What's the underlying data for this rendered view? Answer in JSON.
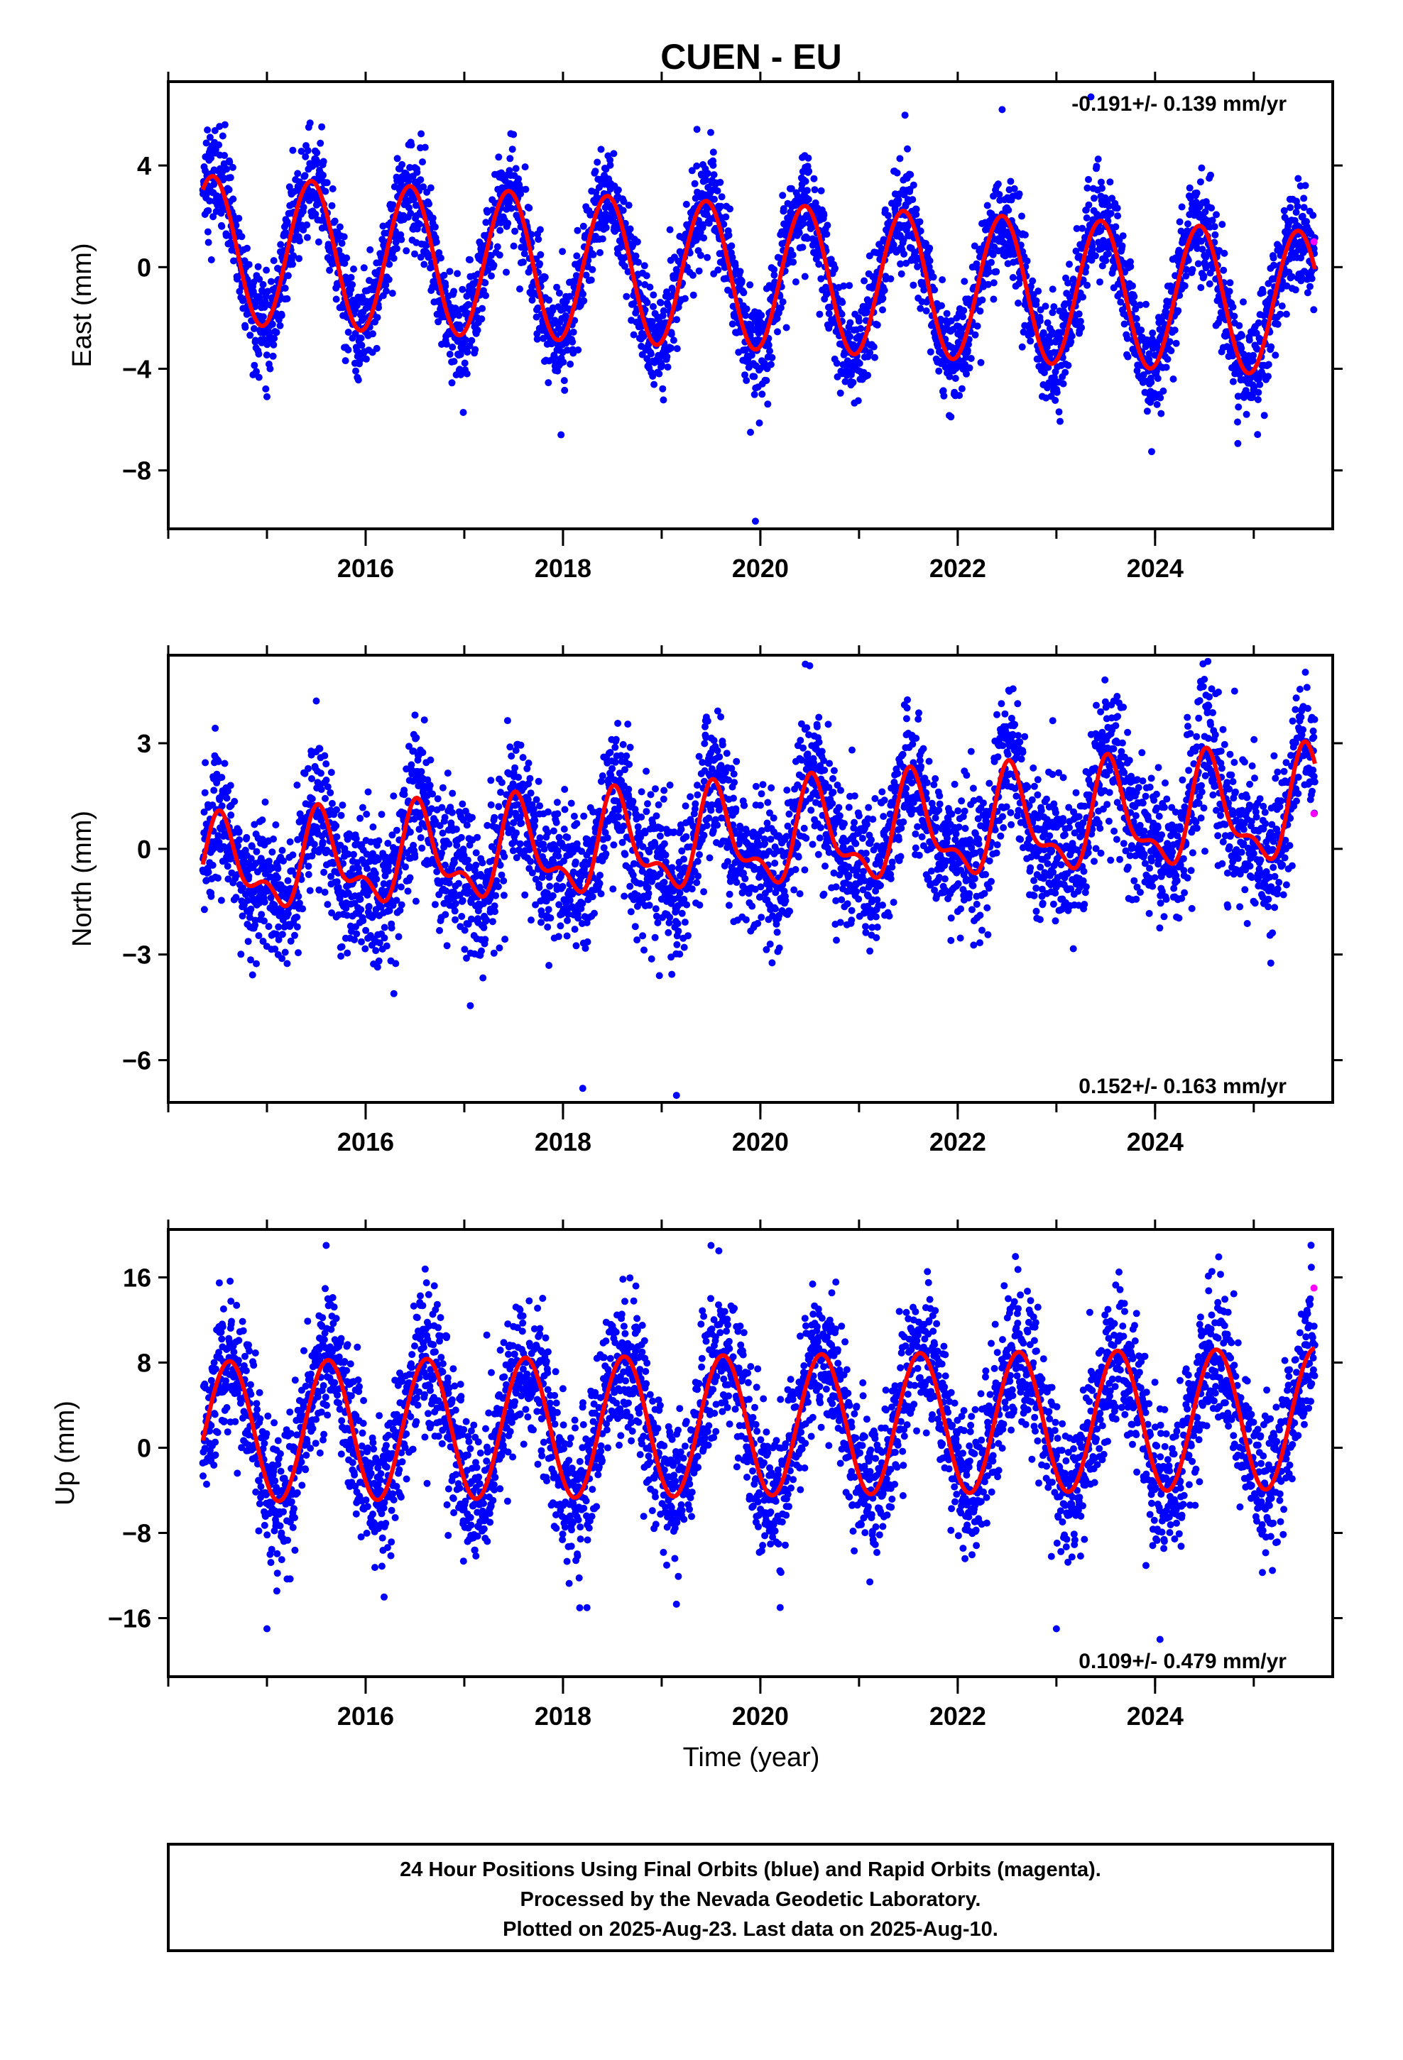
{
  "title": "CUEN - EU",
  "colors": {
    "final": "#0000ff",
    "rapid": "#ff00ff",
    "model": "#ff0000",
    "frame": "#000000"
  },
  "footer": {
    "line1": "24 Hour Positions Using Final Orbits (blue) and Rapid Orbits (magenta).",
    "line2": "Processed by the Nevada Geodetic Laboratory.",
    "line3": "Plotted on 2025-Aug-23. Last data on 2025-Aug-10."
  },
  "chart_data": [
    {
      "type": "scatter",
      "name": "east",
      "ylabel": "East (mm)",
      "xlabel": "",
      "rate_text": "-0.191+/- 0.139 mm/yr",
      "xlim": [
        2014.0,
        2025.8
      ],
      "ylim": [
        -10.3,
        7.3
      ],
      "xticks": [
        2016,
        2018,
        2020,
        2022,
        2024
      ],
      "yticks": [
        4,
        0,
        -4,
        -8
      ],
      "ytick_labels": [
        "4",
        "0",
        "−4",
        "−8"
      ],
      "model": {
        "start": 2014.35,
        "end": 2025.62,
        "offset": 0.7,
        "trend": -0.191,
        "annual_amp_start": 2.9,
        "annual_amp_end": 2.85,
        "annual_peak": 2014.45,
        "semi_amp": 0,
        "semi_phase": 0
      },
      "scatter": {
        "noise_sd": 1.0,
        "outliers": [
          [
            2019.95,
            -10.0
          ],
          [
            2017.98,
            -6.6
          ],
          [
            2019.9,
            -6.5
          ],
          [
            2015.0,
            -5.1
          ],
          [
            2023.35,
            6.7
          ],
          [
            2022.45,
            6.2
          ]
        ]
      },
      "rapid_points": [
        [
          2025.61,
          1.0
        ]
      ]
    },
    {
      "type": "scatter",
      "name": "north",
      "ylabel": "North (mm)",
      "xlabel": "",
      "rate_text": "0.152+/- 0.163 mm/yr",
      "xlim": [
        2014.0,
        2025.8
      ],
      "ylim": [
        -7.2,
        5.5
      ],
      "xticks": [
        2016,
        2018,
        2020,
        2022,
        2024
      ],
      "yticks": [
        3,
        0,
        -3,
        -6
      ],
      "ytick_labels": [
        "3",
        "0",
        "−3",
        "−6"
      ],
      "model": {
        "start": 2014.35,
        "end": 2025.62,
        "offset": -0.6,
        "trend": 0.152,
        "annual_amp_start": 1.1,
        "annual_amp_end": 1.4,
        "annual_peak": 2014.55,
        "semi_amp": 0.6,
        "semi_phase": 2014.5
      },
      "scatter": {
        "noise_sd": 1.0,
        "outliers": [
          [
            2018.2,
            -6.8
          ],
          [
            2019.15,
            -7.0
          ],
          [
            2020.5,
            5.2
          ],
          [
            2015.5,
            4.2
          ],
          [
            2016.5,
            3.8
          ]
        ]
      },
      "rapid_points": [
        [
          2025.61,
          1.0
        ]
      ]
    },
    {
      "type": "scatter",
      "name": "up",
      "ylabel": "Up (mm)",
      "xlabel": "Time (year)",
      "rate_text": "0.109+/- 0.479 mm/yr",
      "xlim": [
        2014.0,
        2025.8
      ],
      "ylim": [
        -21.5,
        20.5
      ],
      "xticks": [
        2016,
        2018,
        2020,
        2022,
        2024
      ],
      "yticks": [
        16,
        8,
        0,
        -8,
        -16
      ],
      "ytick_labels": [
        "16",
        "8",
        "0",
        "−8",
        "−16"
      ],
      "model": {
        "start": 2014.35,
        "end": 2025.62,
        "offset": 1.5,
        "trend": 0.109,
        "annual_amp_start": 6.6,
        "annual_amp_end": 6.6,
        "annual_peak": 2014.62,
        "semi_amp": 0,
        "semi_phase": 0
      },
      "scatter": {
        "noise_sd": 3.4,
        "outliers": [
          [
            2015.6,
            19.0
          ],
          [
            2019.5,
            19.0
          ],
          [
            2023.0,
            -17.0
          ],
          [
            2024.05,
            -18.0
          ],
          [
            2015.0,
            -17.0
          ]
        ]
      },
      "rapid_points": [
        [
          2025.61,
          15.0
        ]
      ]
    }
  ]
}
